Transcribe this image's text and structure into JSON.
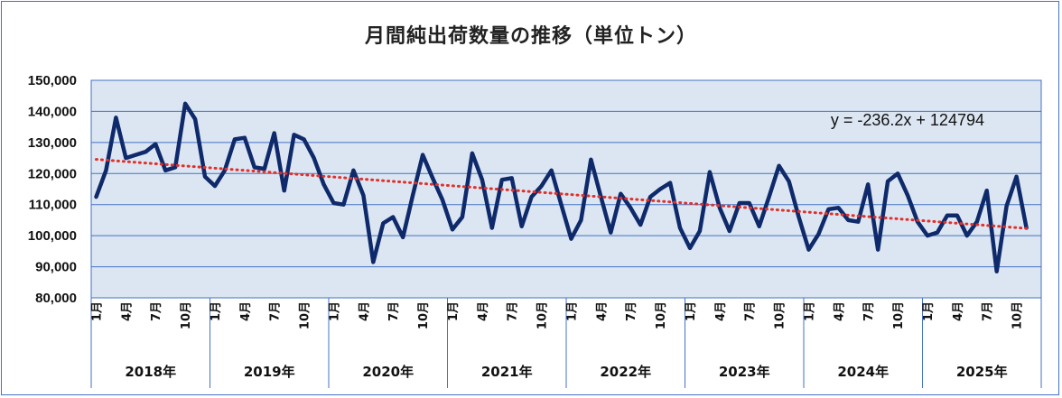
{
  "chart_data": {
    "type": "line",
    "title": "月間純出荷数量の推移（単位トン）",
    "ylim": [
      80000,
      150000
    ],
    "y_ticks": [
      "80,000",
      "90,000",
      "100,000",
      "110,000",
      "120,000",
      "130,000",
      "140,000",
      "150,000"
    ],
    "month_tick_labels": [
      "1月",
      "4月",
      "7月",
      "10月"
    ],
    "years": [
      "2018年",
      "2019年",
      "2020年",
      "2021年",
      "2022年",
      "2023年",
      "2024年",
      "2025年"
    ],
    "grid": true,
    "series": [
      {
        "color": "#0f2a6b",
        "values": [
          112500,
          121000,
          138000,
          125000,
          126000,
          127000,
          129500,
          121000,
          122000,
          142500,
          137500,
          119000,
          116000,
          121000,
          131000,
          131500,
          122000,
          121500,
          133000,
          114500,
          132500,
          131000,
          125000,
          116500,
          110500,
          110000,
          121000,
          113000,
          91500,
          104000,
          106000,
          99500,
          113000,
          126000,
          118500,
          111500,
          102000,
          106000,
          126500,
          118000,
          102500,
          118000,
          118500,
          103000,
          112500,
          116000,
          121000,
          110000,
          99000,
          105000,
          124500,
          112500,
          101000,
          113500,
          109000,
          103500,
          112500,
          115000,
          117000,
          102500,
          96000,
          101500,
          120500,
          109000,
          101500,
          110500,
          110500,
          103000,
          112500,
          122500,
          117500,
          106000,
          95500,
          100500,
          108500,
          109000,
          105000,
          104500,
          116500,
          95500,
          117500,
          120000,
          113000,
          104500,
          100000,
          101000,
          106500,
          106500,
          100000,
          104500,
          114500,
          88500,
          109500,
          119000,
          102500
        ]
      }
    ],
    "trendline": {
      "style": "dotted",
      "color": "#e0302b",
      "equation": "y = -236.2x + 124794",
      "slope": -236.2,
      "intercept": 124794
    }
  }
}
